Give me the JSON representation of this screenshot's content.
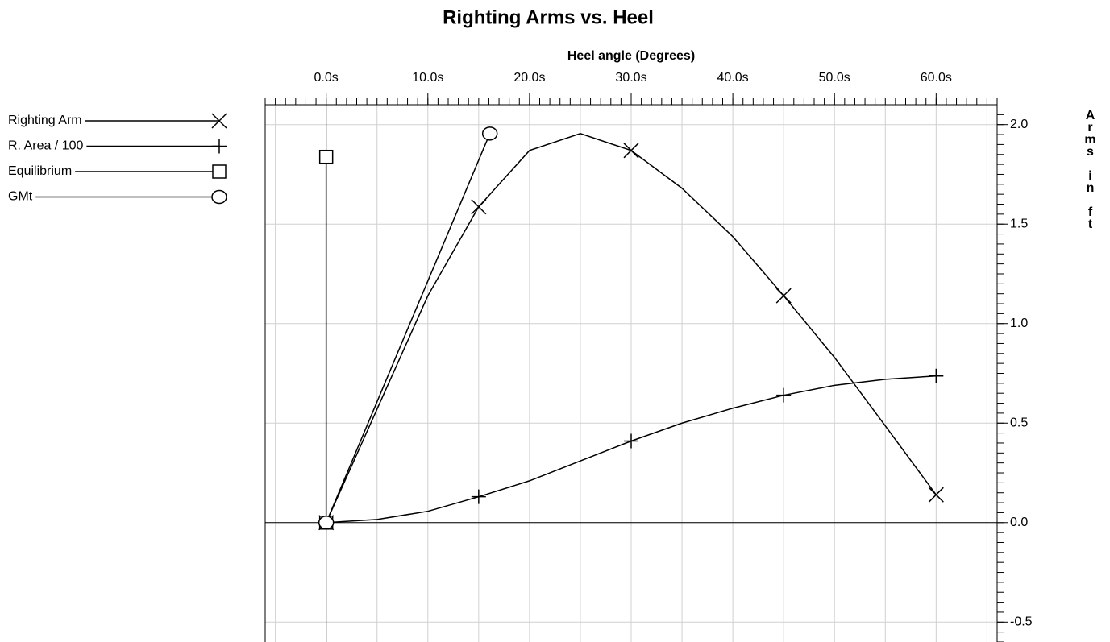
{
  "chart_data": {
    "type": "line",
    "title": "Righting Arms vs. Heel",
    "x_label": "Heel angle (Degrees)",
    "y_label": "Arms in ft",
    "xlim": [
      -6,
      66
    ],
    "ylim": [
      -0.6,
      2.1
    ],
    "xticks": [
      {
        "value": 0,
        "label": "0.0s"
      },
      {
        "value": 10,
        "label": "10.0s"
      },
      {
        "value": 20,
        "label": "20.0s"
      },
      {
        "value": 30,
        "label": "30.0s"
      },
      {
        "value": 40,
        "label": "40.0s"
      },
      {
        "value": 50,
        "label": "50.0s"
      },
      {
        "value": 60,
        "label": "60.0s"
      }
    ],
    "yticks": [
      {
        "value": -0.5,
        "label": "-0.5"
      },
      {
        "value": 0,
        "label": "0.0"
      },
      {
        "value": 0.5,
        "label": "0.5"
      },
      {
        "value": 1,
        "label": "1.0"
      },
      {
        "value": 1.5,
        "label": "1.5"
      },
      {
        "value": 2,
        "label": "2.0"
      }
    ],
    "grid": true,
    "legend": "left",
    "series": [
      {
        "name": "Righting Arm",
        "color": "#000000",
        "marker": "x",
        "marker_every": 3,
        "x": [
          0,
          5,
          10,
          15,
          20,
          25,
          30,
          35,
          40,
          45,
          50,
          55,
          60
        ],
        "values": [
          0,
          0.57,
          1.14,
          1.587,
          1.87,
          1.955,
          1.87,
          1.68,
          1.437,
          1.14,
          0.83,
          0.486,
          0.14
        ]
      },
      {
        "name": "R. Area / 100",
        "color": "#000000",
        "marker": "plus",
        "marker_every": 3,
        "x": [
          0,
          5,
          10,
          15,
          20,
          25,
          30,
          35,
          40,
          45,
          50,
          55,
          60
        ],
        "values": [
          0,
          0.016,
          0.057,
          0.13,
          0.21,
          0.31,
          0.41,
          0.5,
          0.575,
          0.64,
          0.69,
          0.72,
          0.737
        ]
      },
      {
        "name": "Equilibrium",
        "color": "#000000",
        "marker": "square",
        "marker_every": 1,
        "x": [
          0,
          0
        ],
        "values": [
          0,
          1.838
        ]
      },
      {
        "name": "GMt",
        "color": "#000000",
        "marker": "circle",
        "marker_every": 1,
        "x": [
          0,
          16.1
        ],
        "values": [
          0,
          1.955
        ]
      }
    ]
  }
}
